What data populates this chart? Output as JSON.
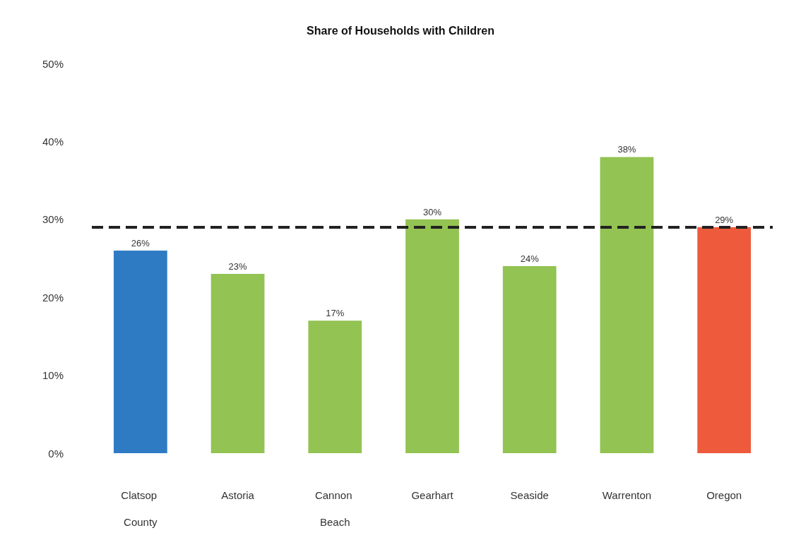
{
  "chart_data": {
    "type": "bar",
    "title": "Share of Households with Children",
    "categories": [
      "Clatsop County",
      "Astoria",
      "Cannon Beach",
      "Gearhart",
      "Seaside",
      "Warrenton",
      "Oregon"
    ],
    "values": [
      26,
      23,
      17,
      30,
      24,
      38,
      29
    ],
    "colors": [
      "#2e7bc4",
      "#93c353",
      "#93c353",
      "#93c353",
      "#93c353",
      "#93c353",
      "#ee5a3c"
    ],
    "ylim": [
      0,
      50
    ],
    "yticks": [
      {
        "value": 0,
        "label": "0%"
      },
      {
        "value": 10,
        "label": "10%"
      },
      {
        "value": 20,
        "label": "20%"
      },
      {
        "value": 30,
        "label": "30%"
      },
      {
        "value": 40,
        "label": "40%"
      },
      {
        "value": 50,
        "label": "50%"
      }
    ],
    "value_labels": [
      "26%",
      "23%",
      "17%",
      "30%",
      "24%",
      "38%",
      "29%"
    ],
    "grid": false,
    "ref_lines": [
      {
        "axis": "y",
        "value": 29,
        "color": "#222222",
        "line_style": "dashed"
      }
    ]
  }
}
